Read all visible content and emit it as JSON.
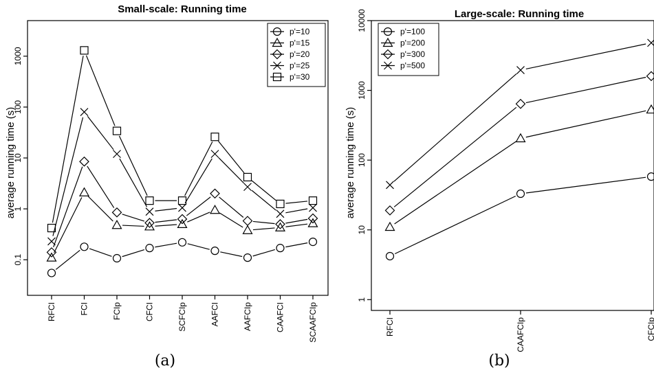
{
  "chart_data": [
    {
      "type": "line",
      "title": "Small-scale: Running time",
      "xlabel": "",
      "ylabel": "average running time (s)",
      "y_scale": "log",
      "ylim": [
        0.02,
        5000
      ],
      "y_ticks": [
        0.1,
        1,
        10,
        100,
        1000
      ],
      "y_tick_labels": [
        "0.1",
        "1",
        "10",
        "100",
        "1000"
      ],
      "categories": [
        "RFCI",
        "FCI",
        "FCIp",
        "CFCI",
        "SCFCIp",
        "AAFCI",
        "AAFCIp",
        "CAAFCI",
        "SCAAFCIp"
      ],
      "legend_position": "top-right",
      "series": [
        {
          "name": "p'=10",
          "marker": "circle",
          "values": [
            0.055,
            0.18,
            0.107,
            0.17,
            0.22,
            0.15,
            0.11,
            0.17,
            0.225
          ]
        },
        {
          "name": "p'=15",
          "marker": "triangle",
          "values": [
            0.11,
            2.1,
            0.48,
            0.45,
            0.5,
            0.95,
            0.38,
            0.43,
            0.52
          ]
        },
        {
          "name": "p'=20",
          "marker": "diamond",
          "values": [
            0.14,
            8.5,
            0.85,
            0.53,
            0.63,
            2.0,
            0.58,
            0.5,
            0.65
          ]
        },
        {
          "name": "p'=25",
          "marker": "cross",
          "values": [
            0.23,
            80,
            12,
            0.88,
            1.05,
            12,
            2.7,
            0.8,
            1.05
          ]
        },
        {
          "name": "p'=30",
          "marker": "square",
          "values": [
            0.42,
            1300,
            34,
            1.45,
            1.45,
            26,
            4.2,
            1.25,
            1.45
          ]
        }
      ],
      "caption": "(a)"
    },
    {
      "type": "line",
      "title": "Large-scale: Running time",
      "xlabel": "",
      "ylabel": "average running time (s)",
      "y_scale": "log",
      "ylim": [
        0.7,
        10000
      ],
      "y_ticks": [
        1,
        10,
        100,
        1000,
        10000
      ],
      "y_tick_labels": [
        "1",
        "10",
        "100",
        "1000",
        "10000"
      ],
      "categories": [
        "RFCI",
        "CAAFCIp",
        "CFCIp"
      ],
      "legend_position": "top-left",
      "series": [
        {
          "name": "p'=100",
          "marker": "circle",
          "values": [
            4.2,
            33,
            58
          ]
        },
        {
          "name": "p'=200",
          "marker": "triangle",
          "values": [
            11,
            205,
            530
          ]
        },
        {
          "name": "p'=300",
          "marker": "diamond",
          "values": [
            19,
            640,
            1600
          ]
        },
        {
          "name": "p'=500",
          "marker": "cross",
          "values": [
            44,
            1950,
            4800
          ]
        }
      ],
      "caption": "(b)"
    }
  ]
}
